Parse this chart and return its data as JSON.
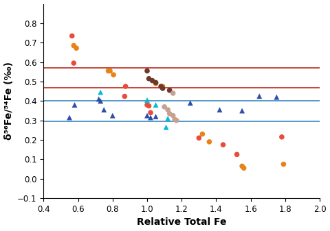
{
  "title": "",
  "xlabel": "Relative Total Fe",
  "ylabel": "δ⁵⁶Fe/⁵⁴Fe (‰)",
  "xlim": [
    0.4,
    2.0
  ],
  "ylim": [
    -0.1,
    0.9
  ],
  "xticks": [
    0.4,
    0.6,
    0.8,
    1.0,
    1.2,
    1.4,
    1.6,
    1.8,
    2.0
  ],
  "yticks": [
    -0.1,
    0.0,
    0.1,
    0.2,
    0.3,
    0.4,
    0.5,
    0.6,
    0.7,
    0.8
  ],
  "red_lines": [
    0.57,
    0.47
  ],
  "blue_lines": [
    0.4,
    0.295
  ],
  "red_circles": [
    [
      0.565,
      0.735
    ],
    [
      0.575,
      0.595
    ],
    [
      0.875,
      0.475
    ],
    [
      0.87,
      0.424
    ],
    [
      1.0,
      0.38
    ],
    [
      1.01,
      0.375
    ],
    [
      1.02,
      0.34
    ],
    [
      1.3,
      0.21
    ],
    [
      1.44,
      0.175
    ],
    [
      1.52,
      0.125
    ],
    [
      1.78,
      0.215
    ]
  ],
  "orange_circles": [
    [
      0.575,
      0.685
    ],
    [
      0.59,
      0.672
    ],
    [
      0.775,
      0.555
    ],
    [
      0.785,
      0.555
    ],
    [
      0.805,
      0.535
    ],
    [
      1.05,
      0.49
    ],
    [
      1.09,
      0.475
    ],
    [
      1.32,
      0.23
    ],
    [
      1.36,
      0.19
    ],
    [
      1.55,
      0.065
    ],
    [
      1.56,
      0.055
    ],
    [
      1.79,
      0.075
    ]
  ],
  "brown_circles": [
    [
      1.0,
      0.555
    ],
    [
      1.01,
      0.515
    ],
    [
      1.03,
      0.505
    ],
    [
      1.05,
      0.495
    ],
    [
      1.08,
      0.475
    ],
    [
      1.09,
      0.465
    ],
    [
      1.13,
      0.455
    ]
  ],
  "pink_circles": [
    [
      1.15,
      0.44
    ],
    [
      1.1,
      0.37
    ],
    [
      1.12,
      0.355
    ],
    [
      1.13,
      0.335
    ],
    [
      1.15,
      0.325
    ],
    [
      1.16,
      0.305
    ],
    [
      1.17,
      0.3
    ]
  ],
  "blue_triangles": [
    [
      0.55,
      0.315
    ],
    [
      0.58,
      0.38
    ],
    [
      0.72,
      0.41
    ],
    [
      0.73,
      0.4
    ],
    [
      0.75,
      0.355
    ],
    [
      0.8,
      0.325
    ],
    [
      1.0,
      0.325
    ],
    [
      1.02,
      0.315
    ],
    [
      1.05,
      0.32
    ],
    [
      1.25,
      0.39
    ],
    [
      1.42,
      0.355
    ],
    [
      1.55,
      0.35
    ],
    [
      1.65,
      0.425
    ],
    [
      1.75,
      0.42
    ]
  ],
  "cyan_triangles": [
    [
      0.73,
      0.445
    ],
    [
      1.0,
      0.405
    ],
    [
      1.05,
      0.38
    ],
    [
      1.11,
      0.265
    ],
    [
      1.12,
      0.31
    ]
  ],
  "red_line_color": "#c0392b",
  "blue_line_color": "#4a90c4",
  "red_circle_color": "#e74c3c",
  "orange_circle_color": "#e8821a",
  "brown_circle_color": "#6b3a2a",
  "pink_circle_color": "#c8a090",
  "blue_triangle_color": "#2c4faa",
  "cyan_triangle_color": "#00bcd4",
  "marker_size": 30,
  "triangle_size": 32
}
